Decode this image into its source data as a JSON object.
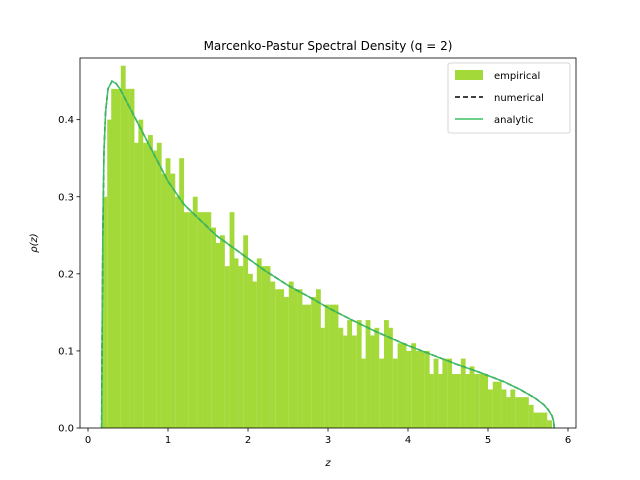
{
  "chart_data": {
    "type": "histogram",
    "title": "Marcenko-Pastur Spectral Density (q = 2)",
    "xlabel": "z",
    "ylabel": "ρ(z)",
    "xlim": [
      -0.1,
      6.1
    ],
    "ylim": [
      0.0,
      0.48
    ],
    "xticks": [
      0,
      1,
      2,
      3,
      4,
      5,
      6
    ],
    "yticks": [
      0.0,
      0.1,
      0.2,
      0.3,
      0.4
    ],
    "ytick_labels": [
      "0.0",
      "0.1",
      "0.2",
      "0.3",
      "0.4"
    ],
    "grid": false,
    "legend_position": "top-right",
    "legend": [
      "empirical",
      "numerical",
      "analytic"
    ],
    "colors": {
      "empirical": "#a3d939",
      "numerical": "#000000",
      "analytic": "#3bbf64"
    },
    "series": [
      {
        "name": "empirical",
        "kind": "histogram",
        "bin_width": 0.0567,
        "bins": [
          [
            0.18,
            0.3
          ],
          [
            0.24,
            0.4
          ],
          [
            0.29,
            0.44
          ],
          [
            0.35,
            0.44
          ],
          [
            0.41,
            0.47
          ],
          [
            0.46,
            0.44
          ],
          [
            0.52,
            0.44
          ],
          [
            0.58,
            0.37
          ],
          [
            0.63,
            0.4
          ],
          [
            0.69,
            0.37
          ],
          [
            0.75,
            0.38
          ],
          [
            0.8,
            0.36
          ],
          [
            0.86,
            0.37
          ],
          [
            0.92,
            0.33
          ],
          [
            0.97,
            0.35
          ],
          [
            1.03,
            0.33
          ],
          [
            1.09,
            0.3
          ],
          [
            1.14,
            0.35
          ],
          [
            1.2,
            0.28
          ],
          [
            1.26,
            0.28
          ],
          [
            1.31,
            0.3
          ],
          [
            1.37,
            0.28
          ],
          [
            1.43,
            0.28
          ],
          [
            1.48,
            0.28
          ],
          [
            1.54,
            0.26
          ],
          [
            1.6,
            0.24
          ],
          [
            1.65,
            0.25
          ],
          [
            1.71,
            0.21
          ],
          [
            1.77,
            0.28
          ],
          [
            1.82,
            0.22
          ],
          [
            1.88,
            0.21
          ],
          [
            1.94,
            0.25
          ],
          [
            2.0,
            0.2
          ],
          [
            2.05,
            0.19
          ],
          [
            2.11,
            0.22
          ],
          [
            2.17,
            0.21
          ],
          [
            2.22,
            0.21
          ],
          [
            2.28,
            0.19
          ],
          [
            2.34,
            0.18
          ],
          [
            2.39,
            0.18
          ],
          [
            2.45,
            0.17
          ],
          [
            2.51,
            0.19
          ],
          [
            2.56,
            0.18
          ],
          [
            2.62,
            0.18
          ],
          [
            2.68,
            0.16
          ],
          [
            2.73,
            0.16
          ],
          [
            2.79,
            0.17
          ],
          [
            2.85,
            0.18
          ],
          [
            2.9,
            0.13
          ],
          [
            2.96,
            0.16
          ],
          [
            3.02,
            0.16
          ],
          [
            3.07,
            0.16
          ],
          [
            3.13,
            0.13
          ],
          [
            3.19,
            0.12
          ],
          [
            3.24,
            0.14
          ],
          [
            3.3,
            0.12
          ],
          [
            3.36,
            0.14
          ],
          [
            3.41,
            0.09
          ],
          [
            3.47,
            0.14
          ],
          [
            3.53,
            0.12
          ],
          [
            3.58,
            0.13
          ],
          [
            3.64,
            0.09
          ],
          [
            3.7,
            0.14
          ],
          [
            3.75,
            0.13
          ],
          [
            3.81,
            0.09
          ],
          [
            3.87,
            0.11
          ],
          [
            3.92,
            0.11
          ],
          [
            3.98,
            0.1
          ],
          [
            4.04,
            0.11
          ],
          [
            4.09,
            0.1
          ],
          [
            4.15,
            0.1
          ],
          [
            4.21,
            0.1
          ],
          [
            4.26,
            0.07
          ],
          [
            4.32,
            0.09
          ],
          [
            4.38,
            0.07
          ],
          [
            4.43,
            0.09
          ],
          [
            4.49,
            0.09
          ],
          [
            4.55,
            0.07
          ],
          [
            4.6,
            0.07
          ],
          [
            4.66,
            0.09
          ],
          [
            4.72,
            0.07
          ],
          [
            4.77,
            0.08
          ],
          [
            4.83,
            0.07
          ],
          [
            4.89,
            0.07
          ],
          [
            4.94,
            0.07
          ],
          [
            5.0,
            0.05
          ],
          [
            5.06,
            0.06
          ],
          [
            5.11,
            0.06
          ],
          [
            5.17,
            0.05
          ],
          [
            5.23,
            0.04
          ],
          [
            5.28,
            0.05
          ],
          [
            5.34,
            0.04
          ],
          [
            5.4,
            0.04
          ],
          [
            5.45,
            0.04
          ],
          [
            5.51,
            0.03
          ],
          [
            5.57,
            0.02
          ],
          [
            5.62,
            0.02
          ],
          [
            5.68,
            0.02
          ],
          [
            5.74,
            0.01
          ]
        ]
      },
      {
        "name": "numerical",
        "kind": "line",
        "style": "dashed",
        "x": [
          0.17,
          0.175,
          0.185,
          0.2,
          0.22,
          0.25,
          0.3,
          0.35,
          0.4,
          0.5,
          0.6,
          0.7,
          0.8,
          1.0,
          1.2,
          1.4,
          1.6,
          1.8,
          2.0,
          2.2,
          2.5,
          2.8,
          3.0,
          3.3,
          3.6,
          4.0,
          4.3,
          4.6,
          4.9,
          5.2,
          5.4,
          5.6,
          5.7,
          5.75,
          5.8,
          5.82,
          5.828
        ],
        "y": [
          0.0,
          0.1,
          0.25,
          0.36,
          0.41,
          0.44,
          0.45,
          0.447,
          0.44,
          0.42,
          0.4,
          0.38,
          0.36,
          0.32,
          0.29,
          0.27,
          0.25,
          0.235,
          0.22,
          0.205,
          0.185,
          0.168,
          0.156,
          0.14,
          0.125,
          0.107,
          0.095,
          0.083,
          0.072,
          0.06,
          0.05,
          0.038,
          0.03,
          0.024,
          0.016,
          0.009,
          0.0
        ]
      },
      {
        "name": "analytic",
        "kind": "line",
        "style": "solid",
        "x": [
          0.172,
          0.175,
          0.185,
          0.2,
          0.22,
          0.25,
          0.3,
          0.35,
          0.4,
          0.5,
          0.6,
          0.7,
          0.8,
          1.0,
          1.2,
          1.4,
          1.6,
          1.8,
          2.0,
          2.2,
          2.5,
          2.8,
          3.0,
          3.3,
          3.6,
          4.0,
          4.3,
          4.6,
          4.9,
          5.2,
          5.4,
          5.6,
          5.7,
          5.75,
          5.8,
          5.82,
          5.828
        ],
        "y": [
          0.0,
          0.1,
          0.25,
          0.36,
          0.41,
          0.44,
          0.45,
          0.447,
          0.44,
          0.42,
          0.4,
          0.38,
          0.36,
          0.32,
          0.29,
          0.27,
          0.25,
          0.235,
          0.22,
          0.205,
          0.185,
          0.168,
          0.156,
          0.14,
          0.125,
          0.107,
          0.095,
          0.083,
          0.072,
          0.06,
          0.05,
          0.038,
          0.03,
          0.024,
          0.016,
          0.009,
          0.0
        ]
      }
    ]
  }
}
